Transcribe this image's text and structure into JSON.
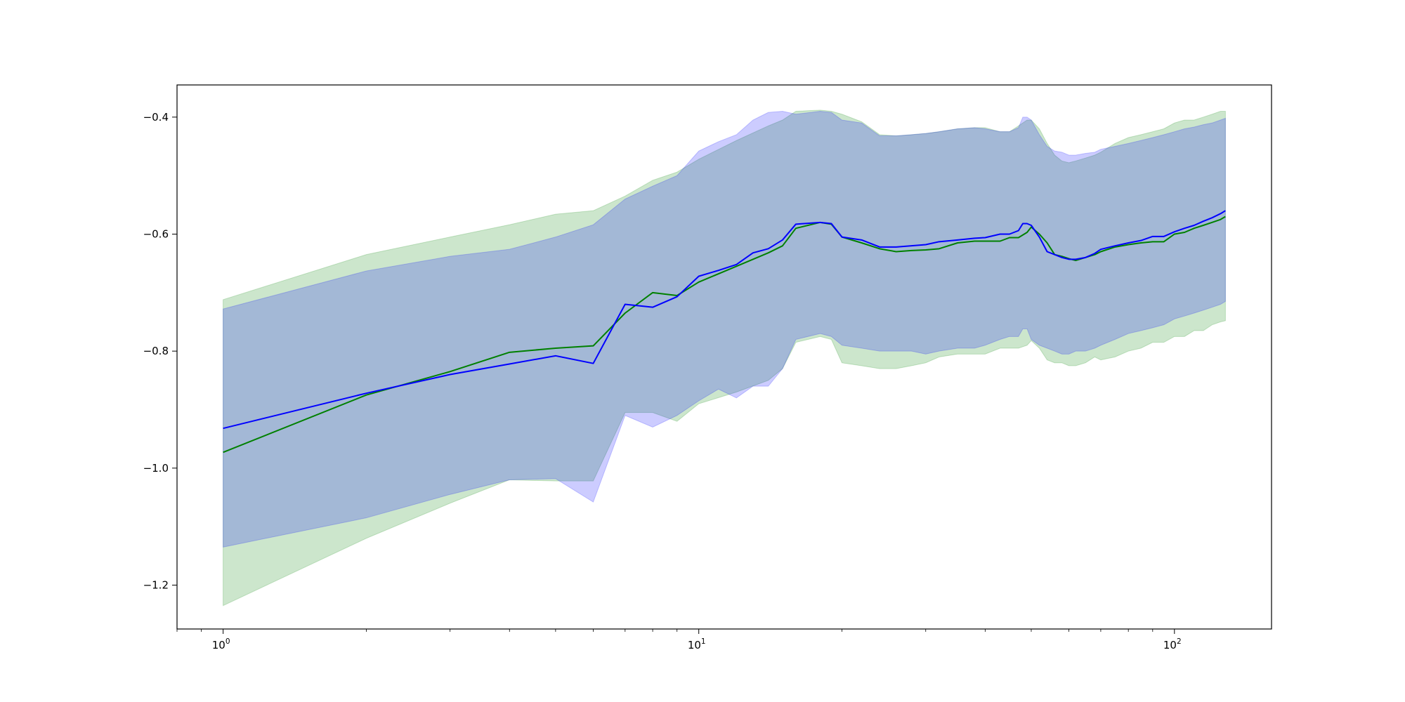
{
  "chart_data": {
    "type": "line",
    "title": "",
    "xlabel": "",
    "ylabel": "",
    "x_scale": "log",
    "xlim": [
      0.8,
      160
    ],
    "ylim": [
      -1.275,
      -0.345
    ],
    "grid": false,
    "x_ticks": [
      {
        "value": 1,
        "base": "10",
        "exp": "0"
      },
      {
        "value": 10,
        "base": "10",
        "exp": "1"
      },
      {
        "value": 100,
        "base": "10",
        "exp": "2"
      }
    ],
    "y_ticks": [
      {
        "value": -0.4,
        "label": "−0.4"
      },
      {
        "value": -0.6,
        "label": "−0.6"
      },
      {
        "value": -0.8,
        "label": "−0.8"
      },
      {
        "value": -1.0,
        "label": "−1.0"
      },
      {
        "value": -1.2,
        "label": "−1.2"
      }
    ],
    "series": [
      {
        "color": "#008000",
        "band_color": "#008000",
        "band_opacity": 0.2,
        "x": [
          1,
          2,
          3,
          4,
          5,
          6,
          7,
          8,
          9,
          10,
          12,
          14,
          15,
          16,
          18,
          19,
          20,
          22,
          24,
          26,
          28,
          30,
          32,
          35,
          38,
          40,
          43,
          45,
          47,
          49,
          50,
          52,
          54,
          56,
          58,
          60,
          62,
          65,
          68,
          70,
          75,
          80,
          85,
          90,
          95,
          100,
          105,
          110,
          115,
          120,
          125,
          128
        ],
        "mean": [
          -0.973,
          -0.875,
          -0.835,
          -0.802,
          -0.795,
          -0.791,
          -0.735,
          -0.7,
          -0.705,
          -0.682,
          -0.655,
          -0.632,
          -0.62,
          -0.59,
          -0.58,
          -0.583,
          -0.605,
          -0.615,
          -0.625,
          -0.63,
          -0.628,
          -0.627,
          -0.625,
          -0.615,
          -0.612,
          -0.612,
          -0.612,
          -0.606,
          -0.606,
          -0.597,
          -0.588,
          -0.6,
          -0.615,
          -0.635,
          -0.638,
          -0.642,
          -0.645,
          -0.64,
          -0.635,
          -0.63,
          -0.622,
          -0.618,
          -0.615,
          -0.613,
          -0.613,
          -0.6,
          -0.597,
          -0.59,
          -0.585,
          -0.58,
          -0.575,
          -0.57
        ],
        "lower": [
          -1.235,
          -1.12,
          -1.06,
          -1.02,
          -1.022,
          -1.022,
          -0.905,
          -0.905,
          -0.92,
          -0.89,
          -0.87,
          -0.85,
          -0.83,
          -0.785,
          -0.775,
          -0.78,
          -0.82,
          -0.825,
          -0.83,
          -0.83,
          -0.825,
          -0.82,
          -0.81,
          -0.805,
          -0.805,
          -0.805,
          -0.795,
          -0.795,
          -0.795,
          -0.79,
          -0.782,
          -0.795,
          -0.815,
          -0.82,
          -0.82,
          -0.825,
          -0.825,
          -0.82,
          -0.81,
          -0.815,
          -0.81,
          -0.8,
          -0.795,
          -0.785,
          -0.785,
          -0.775,
          -0.775,
          -0.765,
          -0.765,
          -0.755,
          -0.75,
          -0.748
        ],
        "upper": [
          -0.712,
          -0.635,
          -0.605,
          -0.584,
          -0.566,
          -0.56,
          -0.535,
          -0.508,
          -0.494,
          -0.472,
          -0.44,
          -0.415,
          -0.405,
          -0.39,
          -0.388,
          -0.39,
          -0.395,
          -0.408,
          -0.43,
          -0.432,
          -0.43,
          -0.428,
          -0.425,
          -0.42,
          -0.418,
          -0.418,
          -0.425,
          -0.425,
          -0.415,
          -0.405,
          -0.405,
          -0.42,
          -0.445,
          -0.465,
          -0.475,
          -0.478,
          -0.475,
          -0.47,
          -0.465,
          -0.46,
          -0.445,
          -0.435,
          -0.43,
          -0.425,
          -0.42,
          -0.41,
          -0.405,
          -0.405,
          -0.4,
          -0.395,
          -0.39,
          -0.39
        ]
      },
      {
        "color": "#0000ff",
        "band_color": "#0000ff",
        "band_opacity": 0.2,
        "x": [
          1,
          2,
          3,
          4,
          5,
          6,
          7,
          8,
          9,
          10,
          11,
          12,
          13,
          14,
          15,
          16,
          18,
          19,
          20,
          22,
          24,
          26,
          28,
          30,
          32,
          35,
          38,
          40,
          43,
          45,
          47,
          48,
          49,
          50,
          52,
          54,
          56,
          58,
          60,
          62,
          65,
          68,
          70,
          75,
          80,
          85,
          90,
          95,
          100,
          105,
          110,
          115,
          120,
          125,
          128
        ],
        "mean": [
          -0.932,
          -0.872,
          -0.84,
          -0.822,
          -0.808,
          -0.821,
          -0.72,
          -0.725,
          -0.707,
          -0.672,
          -0.662,
          -0.652,
          -0.632,
          -0.625,
          -0.61,
          -0.583,
          -0.58,
          -0.582,
          -0.605,
          -0.61,
          -0.622,
          -0.622,
          -0.62,
          -0.618,
          -0.613,
          -0.61,
          -0.607,
          -0.606,
          -0.6,
          -0.6,
          -0.594,
          -0.582,
          -0.582,
          -0.585,
          -0.605,
          -0.63,
          -0.635,
          -0.64,
          -0.643,
          -0.643,
          -0.64,
          -0.633,
          -0.626,
          -0.62,
          -0.615,
          -0.611,
          -0.604,
          -0.604,
          -0.596,
          -0.59,
          -0.585,
          -0.578,
          -0.572,
          -0.565,
          -0.56
        ],
        "lower": [
          -1.135,
          -1.085,
          -1.045,
          -1.02,
          -1.018,
          -1.058,
          -0.91,
          -0.93,
          -0.91,
          -0.885,
          -0.865,
          -0.88,
          -0.86,
          -0.86,
          -0.83,
          -0.78,
          -0.77,
          -0.775,
          -0.79,
          -0.795,
          -0.8,
          -0.8,
          -0.8,
          -0.805,
          -0.8,
          -0.795,
          -0.795,
          -0.79,
          -0.78,
          -0.775,
          -0.775,
          -0.762,
          -0.762,
          -0.78,
          -0.79,
          -0.795,
          -0.8,
          -0.805,
          -0.805,
          -0.8,
          -0.8,
          -0.795,
          -0.79,
          -0.78,
          -0.77,
          -0.765,
          -0.76,
          -0.755,
          -0.745,
          -0.74,
          -0.735,
          -0.73,
          -0.725,
          -0.72,
          -0.715
        ],
        "upper": [
          -0.728,
          -0.663,
          -0.638,
          -0.626,
          -0.605,
          -0.584,
          -0.54,
          -0.518,
          -0.5,
          -0.458,
          -0.442,
          -0.43,
          -0.405,
          -0.392,
          -0.39,
          -0.395,
          -0.39,
          -0.392,
          -0.405,
          -0.41,
          -0.432,
          -0.432,
          -0.43,
          -0.428,
          -0.425,
          -0.42,
          -0.418,
          -0.42,
          -0.425,
          -0.425,
          -0.418,
          -0.4,
          -0.4,
          -0.405,
          -0.43,
          -0.45,
          -0.458,
          -0.46,
          -0.465,
          -0.465,
          -0.462,
          -0.46,
          -0.455,
          -0.45,
          -0.445,
          -0.44,
          -0.435,
          -0.43,
          -0.425,
          -0.42,
          -0.417,
          -0.413,
          -0.41,
          -0.405,
          -0.402
        ]
      }
    ]
  }
}
